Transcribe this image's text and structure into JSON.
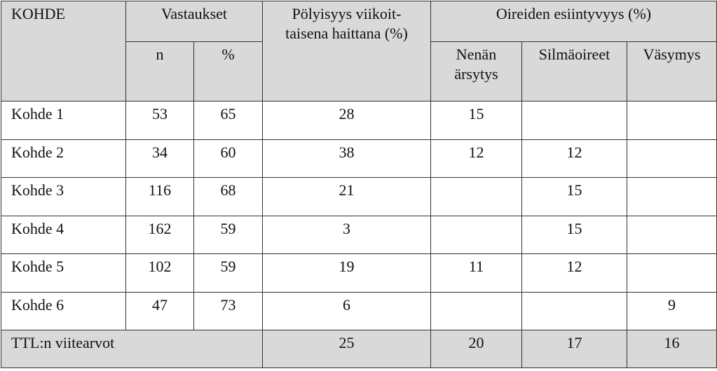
{
  "header": {
    "kohde": "KOHDE",
    "vastaukset": "Vastaukset",
    "n": "n",
    "pct": "%",
    "polyisyys": [
      "Pölyisyys viikoit-",
      "taisena haittana (%)"
    ],
    "oireet": "Oireiden esiintyvyys (%)",
    "nenan": [
      "Nenän",
      "ärsytys"
    ],
    "silma": "Silmäoireet",
    "vasymys": "Väsymys"
  },
  "rows": [
    [
      "Kohde 1",
      53,
      65,
      28,
      15,
      null,
      null
    ],
    [
      "Kohde 2",
      34,
      60,
      38,
      12,
      12,
      null
    ],
    [
      "Kohde 3",
      116,
      68,
      21,
      null,
      15,
      null
    ],
    [
      "Kohde 4",
      162,
      59,
      3,
      null,
      15,
      null
    ],
    [
      "Kohde 5",
      102,
      59,
      19,
      11,
      12,
      null
    ],
    [
      "Kohde 6",
      47,
      73,
      6,
      null,
      null,
      9
    ]
  ],
  "footer": {
    "label": "TTL:n viitearvot",
    "values": [
      25,
      20,
      17,
      16
    ]
  }
}
